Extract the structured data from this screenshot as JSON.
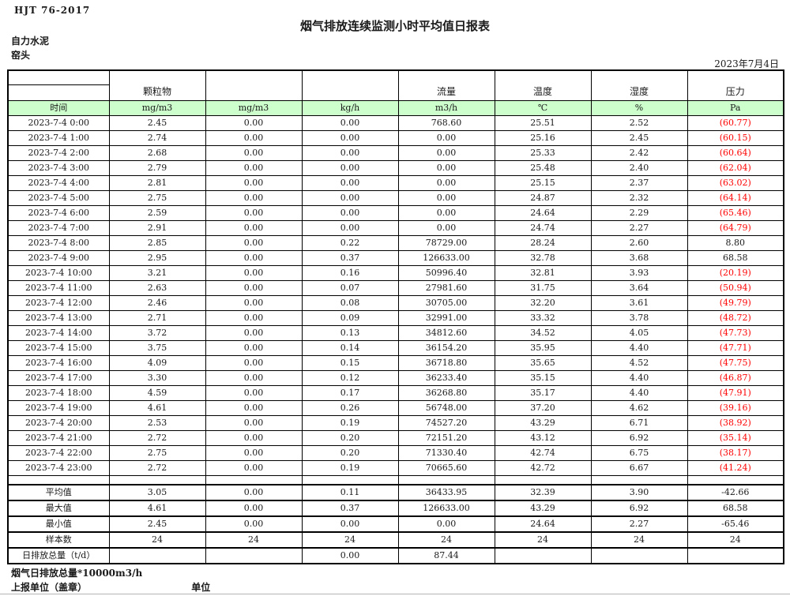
{
  "colors": {
    "unit_row_green": "#ccffcc",
    "alarm_red": "#ff0000",
    "text_black": "#1a1a1a"
  },
  "header": {
    "doc_code": "HJT 76-2017",
    "title": "烟气排放连续监测小时平均值日报表",
    "company": "自力水泥",
    "monitor_point": "窑头",
    "report_date": "2023年7月4日"
  },
  "table": {
    "group_headers": [
      "颗粒物",
      "",
      "",
      "流量",
      "温度",
      "湿度",
      "压力"
    ],
    "unit_headers": [
      "时间",
      "mg/m3",
      "mg/m3",
      "kg/h",
      "m3/h",
      "℃",
      "%",
      "Pa"
    ],
    "hourly_rows": [
      [
        "2023-7-4 0:00",
        "2.45",
        "0.00",
        "0.00",
        "768.60",
        "25.51",
        "2.52",
        "(60.77)"
      ],
      [
        "2023-7-4 1:00",
        "2.74",
        "0.00",
        "0.00",
        "0.00",
        "25.16",
        "2.45",
        "(60.15)"
      ],
      [
        "2023-7-4 2:00",
        "2.68",
        "0.00",
        "0.00",
        "0.00",
        "25.33",
        "2.42",
        "(60.64)"
      ],
      [
        "2023-7-4 3:00",
        "2.79",
        "0.00",
        "0.00",
        "0.00",
        "25.48",
        "2.40",
        "(62.04)"
      ],
      [
        "2023-7-4 4:00",
        "2.81",
        "0.00",
        "0.00",
        "0.00",
        "25.15",
        "2.37",
        "(63.02)"
      ],
      [
        "2023-7-4 5:00",
        "2.75",
        "0.00",
        "0.00",
        "0.00",
        "24.87",
        "2.32",
        "(64.14)"
      ],
      [
        "2023-7-4 6:00",
        "2.59",
        "0.00",
        "0.00",
        "0.00",
        "24.64",
        "2.29",
        "(65.46)"
      ],
      [
        "2023-7-4 7:00",
        "2.91",
        "0.00",
        "0.00",
        "0.00",
        "24.74",
        "2.27",
        "(64.79)"
      ],
      [
        "2023-7-4 8:00",
        "2.85",
        "0.00",
        "0.22",
        "78729.00",
        "28.24",
        "2.60",
        "8.80"
      ],
      [
        "2023-7-4 9:00",
        "2.95",
        "0.00",
        "0.37",
        "126633.00",
        "32.78",
        "3.68",
        "68.58"
      ],
      [
        "2023-7-4 10:00",
        "3.21",
        "0.00",
        "0.16",
        "50996.40",
        "32.81",
        "3.93",
        "(20.19)"
      ],
      [
        "2023-7-4 11:00",
        "2.63",
        "0.00",
        "0.07",
        "27981.60",
        "31.75",
        "3.64",
        "(50.94)"
      ],
      [
        "2023-7-4 12:00",
        "2.46",
        "0.00",
        "0.08",
        "30705.00",
        "32.20",
        "3.61",
        "(49.79)"
      ],
      [
        "2023-7-4 13:00",
        "2.71",
        "0.00",
        "0.09",
        "32991.00",
        "33.32",
        "3.78",
        "(48.72)"
      ],
      [
        "2023-7-4 14:00",
        "3.72",
        "0.00",
        "0.13",
        "34812.60",
        "34.52",
        "4.05",
        "(47.73)"
      ],
      [
        "2023-7-4 15:00",
        "3.75",
        "0.00",
        "0.14",
        "36154.20",
        "35.95",
        "4.40",
        "(47.71)"
      ],
      [
        "2023-7-4 16:00",
        "4.09",
        "0.00",
        "0.15",
        "36718.80",
        "35.65",
        "4.52",
        "(47.75)"
      ],
      [
        "2023-7-4 17:00",
        "3.30",
        "0.00",
        "0.12",
        "36233.40",
        "35.15",
        "4.40",
        "(46.87)"
      ],
      [
        "2023-7-4 18:00",
        "4.59",
        "0.00",
        "0.17",
        "36268.80",
        "35.17",
        "4.40",
        "(47.91)"
      ],
      [
        "2023-7-4 19:00",
        "4.61",
        "0.00",
        "0.26",
        "56748.00",
        "37.20",
        "4.62",
        "(39.16)"
      ],
      [
        "2023-7-4 20:00",
        "2.53",
        "0.00",
        "0.19",
        "74527.20",
        "43.29",
        "6.71",
        "(38.92)"
      ],
      [
        "2023-7-4 21:00",
        "2.72",
        "0.00",
        "0.20",
        "72151.20",
        "43.12",
        "6.92",
        "(35.14)"
      ],
      [
        "2023-7-4 22:00",
        "2.75",
        "0.00",
        "0.20",
        "71330.40",
        "42.74",
        "6.75",
        "(38.17)"
      ],
      [
        "2023-7-4 23:00",
        "2.72",
        "0.00",
        "0.19",
        "70665.60",
        "42.72",
        "6.67",
        "(41.24)"
      ]
    ],
    "summary_rows": [
      [
        "平均值",
        "3.05",
        "0.00",
        "0.11",
        "36433.95",
        "32.39",
        "3.90",
        "-42.66"
      ],
      [
        "最大值",
        "4.61",
        "0.00",
        "0.37",
        "126633.00",
        "43.29",
        "6.92",
        "68.58"
      ],
      [
        "最小值",
        "2.45",
        "0.00",
        "0.00",
        "0.00",
        "24.64",
        "2.27",
        "-65.46"
      ],
      [
        "样本数",
        "24",
        "24",
        "24",
        "24",
        "24",
        "24",
        "24"
      ],
      [
        "日排放总量（t/d）",
        "",
        "",
        "0.00",
        "87.44",
        "",
        "",
        ""
      ]
    ]
  },
  "footer": {
    "note": "烟气日排放总量*10000m3/h",
    "report_unit_label": "上报单位（盖章）",
    "unit_label": "单位"
  }
}
